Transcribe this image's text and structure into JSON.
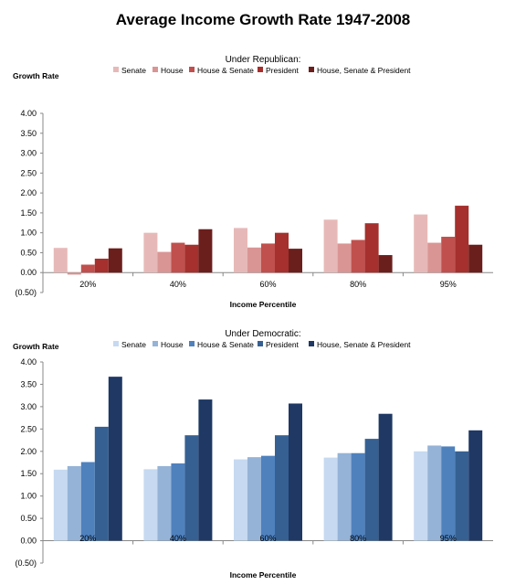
{
  "page": {
    "title": "Average Income Growth Rate 1947-2008"
  },
  "chart_data": [
    {
      "type": "bar",
      "title": "Under Republican:",
      "xlabel": "Income Percentile",
      "ylabel": "Growth Rate",
      "categories": [
        "20%",
        "40%",
        "60%",
        "80%",
        "95%"
      ],
      "ylim": [
        -0.5,
        4.0
      ],
      "yticks": [
        "(0.50)",
        "0.00",
        "0.50",
        "1.00",
        "1.50",
        "2.00",
        "2.50",
        "3.00",
        "3.50",
        "4.00"
      ],
      "grid": false,
      "legend_position": "top",
      "series": [
        {
          "name": "Senate",
          "color": "#e6b9b8",
          "values": [
            0.62,
            1.0,
            1.12,
            1.33,
            1.46
          ]
        },
        {
          "name": "House",
          "color": "#d99594",
          "values": [
            -0.05,
            0.52,
            0.63,
            0.73,
            0.75
          ]
        },
        {
          "name": "House & Senate",
          "color": "#c0504d",
          "values": [
            0.2,
            0.75,
            0.73,
            0.82,
            0.9
          ]
        },
        {
          "name": "President",
          "color": "#a5302d",
          "values": [
            0.35,
            0.7,
            1.0,
            1.24,
            1.68
          ]
        },
        {
          "name": "House, Senate & President",
          "color": "#6b1f1d",
          "values": [
            0.61,
            1.09,
            0.6,
            0.44,
            0.7
          ]
        }
      ]
    },
    {
      "type": "bar",
      "title": "Under Democratic:",
      "xlabel": "Income Percentile",
      "ylabel": "Growth Rate",
      "categories": [
        "20%",
        "40%",
        "60%",
        "80%",
        "95%"
      ],
      "ylim": [
        -0.5,
        4.0
      ],
      "yticks": [
        "(0.50)",
        "0.00",
        "0.50",
        "1.00",
        "1.50",
        "2.00",
        "2.50",
        "3.00",
        "3.50",
        "4.00"
      ],
      "grid": false,
      "legend_position": "top",
      "series": [
        {
          "name": "Senate",
          "color": "#c6d9f1",
          "values": [
            1.59,
            1.6,
            1.82,
            1.86,
            2.0
          ]
        },
        {
          "name": "House",
          "color": "#95b3d7",
          "values": [
            1.67,
            1.67,
            1.87,
            1.96,
            2.13
          ]
        },
        {
          "name": "House & Senate",
          "color": "#4f81bd",
          "values": [
            1.76,
            1.73,
            1.9,
            1.96,
            2.11
          ]
        },
        {
          "name": "President",
          "color": "#366092",
          "values": [
            2.55,
            2.36,
            2.36,
            2.28,
            2.0
          ]
        },
        {
          "name": "House, Senate & President",
          "color": "#1f3864",
          "values": [
            3.67,
            3.16,
            3.07,
            2.84,
            2.47
          ]
        }
      ]
    }
  ]
}
